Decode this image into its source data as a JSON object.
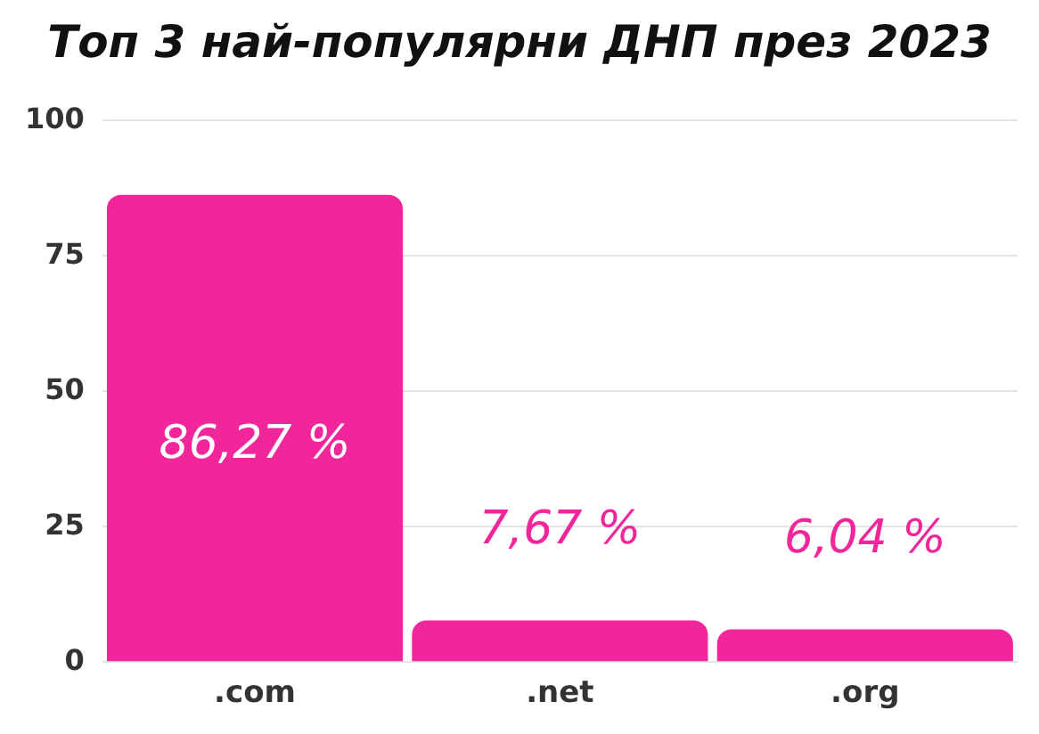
{
  "chart_data": {
    "type": "bar",
    "title": "Топ 3 най-популярни ДНП през 2023",
    "categories": [
      ".com",
      ".net",
      ".org"
    ],
    "values": [
      86.27,
      7.67,
      6.04
    ],
    "value_labels": [
      "86,27 %",
      "7,67 %",
      "6,04 %"
    ],
    "color": "#f0269a",
    "ylim": [
      0,
      100
    ],
    "yticks": [
      0,
      25,
      50,
      75,
      100
    ],
    "grid": "y",
    "legend": false
  }
}
